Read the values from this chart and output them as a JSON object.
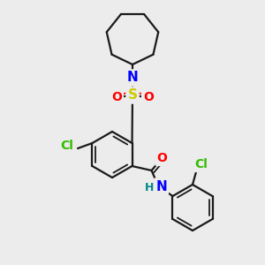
{
  "bg": "#ececec",
  "bond_color": "#1a1a1a",
  "atom_colors": {
    "N": "#0000ff",
    "O": "#ff0000",
    "S": "#cccc00",
    "Cl": "#33bb00",
    "H": "#008888",
    "C": "#1a1a1a"
  },
  "lw": 1.6,
  "dlw": 1.3,
  "r_hex": 26,
  "r_azep": 30
}
